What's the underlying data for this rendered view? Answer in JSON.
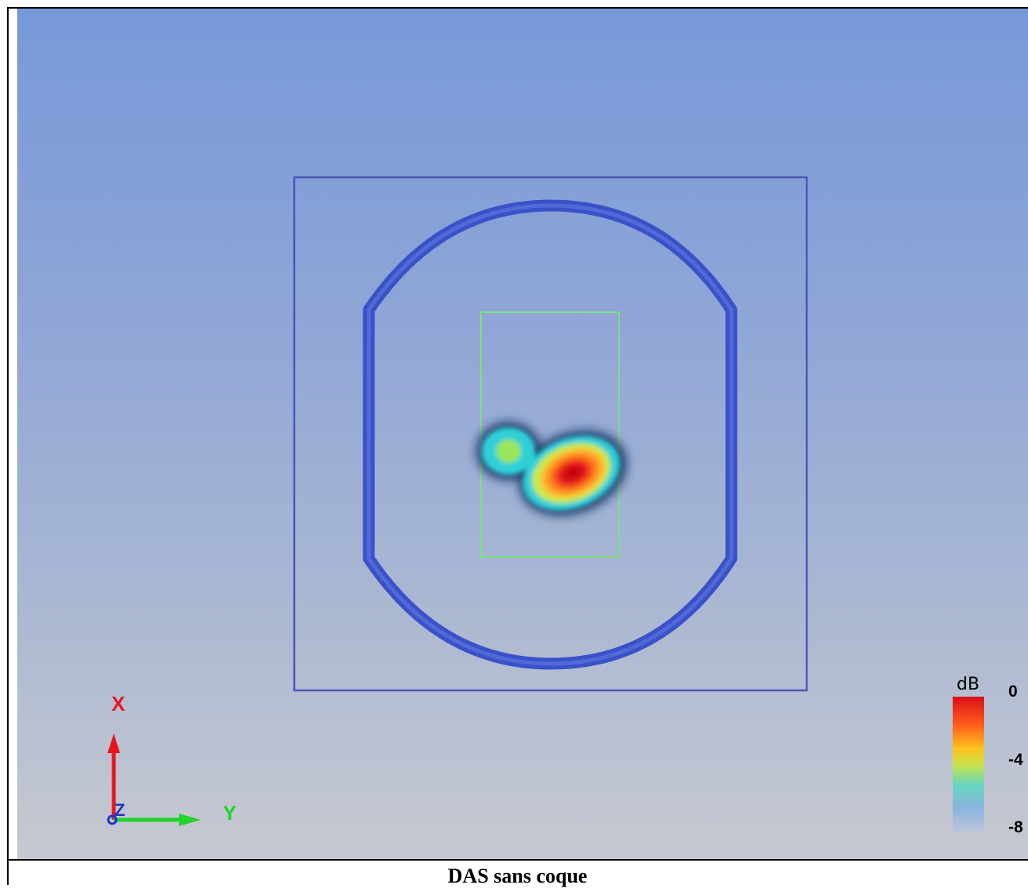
{
  "caption": "DAS sans coque",
  "axes": {
    "x_label": "X",
    "y_label": "Y",
    "z_label": "Z",
    "x_color": "#e8161c",
    "y_color": "#22d32a",
    "z_color": "#1a34c8"
  },
  "colorbar": {
    "title": "dB",
    "ticks": [
      "0",
      "-4",
      "-8"
    ],
    "max": 0,
    "min": -8,
    "colors": [
      "#d9101a",
      "#ff5a1a",
      "#ffc21e",
      "#c8e24a",
      "#66d6c0",
      "#8cb4e0",
      "#c0c6d8"
    ]
  },
  "colors": {
    "outline": "#4a5fd0",
    "scan_area": "#7fe07f",
    "box": "#4a55b8"
  }
}
